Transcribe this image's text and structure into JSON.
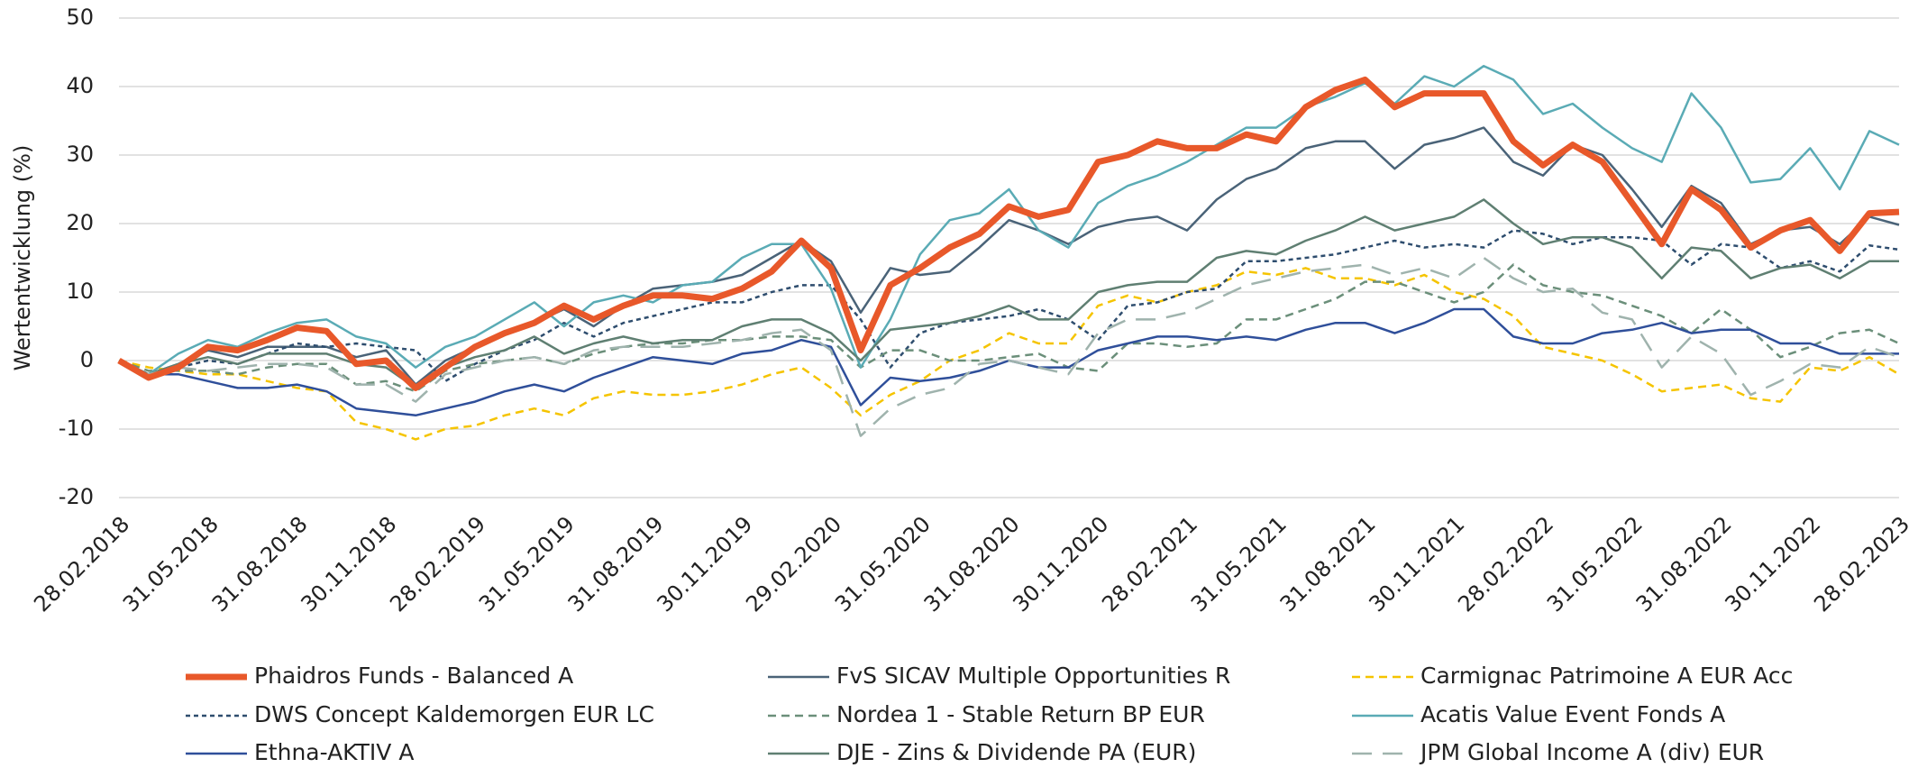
{
  "chart_data": {
    "type": "line",
    "y_label": "Wertentwicklung (%)",
    "ylim": [
      -20,
      50
    ],
    "yticks": [
      -20,
      -10,
      0,
      10,
      20,
      30,
      40,
      50
    ],
    "grid": true,
    "legend": "bottom",
    "categories": [
      "28.02.2018",
      null,
      null,
      "31.05.2018",
      null,
      null,
      "31.08.2018",
      null,
      null,
      "30.11.2018",
      null,
      null,
      "28.02.2019",
      null,
      null,
      "31.05.2019",
      null,
      null,
      "31.08.2019",
      null,
      null,
      "30.11.2019",
      null,
      null,
      "29.02.2020",
      null,
      null,
      "31.05.2020",
      null,
      null,
      "31.08.2020",
      null,
      null,
      "30.11.2020",
      null,
      null,
      "28.02.2021",
      null,
      null,
      "31.05.2021",
      null,
      null,
      "31.08.2021",
      null,
      null,
      "30.11.2021",
      null,
      null,
      "28.02.2022",
      null,
      null,
      "31.05.2022",
      null,
      null,
      "31.08.2022",
      null,
      null,
      "30.11.2022",
      null,
      null,
      "28.02.2023"
    ],
    "series": [
      {
        "name": "Phaidros Funds - Balanced A",
        "color": "#e8582a",
        "dash": "solid",
        "emphasis": true,
        "values": [
          0,
          -2.5,
          -1,
          2,
          1.5,
          3,
          4.8,
          4.3,
          -0.5,
          0,
          -4,
          -1,
          2,
          4,
          5.5,
          8,
          6,
          8,
          9.5,
          9.5,
          9,
          10.5,
          13,
          17.5,
          13.5,
          1.5,
          11,
          13.5,
          16.5,
          18.5,
          22.5,
          21,
          22,
          29,
          30,
          32,
          31,
          31,
          33,
          32,
          37,
          39.5,
          41,
          37,
          39,
          39,
          39,
          32,
          28.5,
          31.5,
          29,
          23,
          17,
          25,
          22,
          16.5,
          19,
          20.5,
          16,
          21.5,
          21.7
        ]
      },
      {
        "name": "FvS SICAV Multiple Opportunities R",
        "color": "#4a6378",
        "dash": "solid",
        "values": [
          0,
          -2,
          -0.5,
          1.5,
          0.5,
          2,
          2,
          2,
          0.5,
          1.5,
          -3.5,
          0,
          2,
          4,
          5.5,
          7.5,
          5,
          8,
          10.5,
          11,
          11.5,
          12.5,
          15,
          17.5,
          14.5,
          7,
          13.5,
          12.5,
          13,
          16.5,
          20.5,
          19,
          17,
          19.5,
          20.5,
          21,
          19,
          23.5,
          26.5,
          28,
          31,
          32,
          32,
          28,
          31.5,
          32.5,
          34,
          29,
          27,
          31.5,
          30,
          25,
          19.5,
          25.5,
          23,
          17,
          19,
          19.5,
          17,
          21,
          19.8
        ]
      },
      {
        "name": "Carmignac Patrimoine A EUR Acc",
        "color": "#f5c400",
        "dash": "dashed",
        "values": [
          0,
          -1,
          -1.5,
          -2,
          -2,
          -3,
          -4,
          -4.5,
          -9,
          -10,
          -11.5,
          -10,
          -9.5,
          -8,
          -7,
          -8,
          -5.5,
          -4.5,
          -5,
          -5,
          -4.5,
          -3.5,
          -2,
          -1,
          -4,
          -8,
          -5,
          -3,
          0,
          1.5,
          4,
          2.5,
          2.5,
          8,
          9.5,
          8.5,
          10,
          11,
          13,
          12.5,
          13.5,
          12,
          12,
          11,
          12.5,
          10,
          9,
          6.5,
          2,
          1,
          0,
          -2,
          -4.5,
          -4,
          -3.5,
          -5.5,
          -6,
          -1,
          -1.5,
          0.5,
          -2
        ]
      },
      {
        "name": "DWS Concept Kaldemorgen EUR LC",
        "color": "#2e4d6e",
        "dash": "dotted",
        "values": [
          0,
          -2,
          -1,
          0,
          -0.5,
          1,
          2.5,
          2,
          2.5,
          2,
          1.5,
          -3,
          -0.5,
          1.5,
          3,
          5.5,
          3.5,
          5.5,
          6.5,
          7.5,
          8.5,
          8.5,
          10,
          11,
          11,
          6,
          -1,
          4,
          5.5,
          6,
          6.5,
          7.5,
          6,
          3,
          8,
          8.5,
          10,
          10.5,
          14.5,
          14.5,
          15,
          15.5,
          16.5,
          17.5,
          16.5,
          17,
          16.5,
          19,
          18.5,
          17,
          18,
          18,
          17.5,
          14,
          17,
          16.5,
          13.5,
          14.5,
          13,
          16.8,
          16.2
        ]
      },
      {
        "name": "Nordea 1 - Stable Return BP EUR",
        "color": "#6b8f7a",
        "dash": "dashed",
        "values": [
          0,
          -1.5,
          -1.5,
          -1.5,
          -2,
          -1,
          -0.5,
          -0.5,
          -3.5,
          -3,
          -4.5,
          -1.5,
          -0.5,
          0,
          0.5,
          -0.5,
          1,
          2,
          2.5,
          2.5,
          3,
          3,
          3.5,
          3.5,
          3,
          -1,
          1.5,
          1.5,
          0,
          0,
          0.5,
          1,
          -1,
          -1.5,
          2.5,
          2.5,
          2,
          2.5,
          6,
          6,
          7.5,
          9,
          11.5,
          11.5,
          10,
          8.5,
          10,
          14,
          11,
          10,
          9.5,
          8,
          6.5,
          4,
          7.5,
          4.5,
          0.5,
          2,
          4,
          4.5,
          2.5
        ]
      },
      {
        "name": "Acatis Value Event Fonds A",
        "color": "#5aabb5",
        "dash": "solid",
        "values": [
          0,
          -2,
          1,
          3,
          2,
          4,
          5.5,
          6,
          3.5,
          2.5,
          -1,
          2,
          3.5,
          6,
          8.5,
          5,
          8.5,
          9.5,
          8.5,
          11,
          11.5,
          15,
          17,
          17,
          10.5,
          -1,
          6,
          15.5,
          20.5,
          21.5,
          25,
          19,
          16.5,
          23,
          25.5,
          27,
          29,
          31.5,
          34,
          34,
          37,
          38.5,
          40.5,
          37.5,
          41.5,
          40,
          43,
          41,
          36,
          37.5,
          34,
          31,
          29,
          39,
          34,
          26,
          26.5,
          31,
          25,
          33.5,
          31.5
        ]
      },
      {
        "name": "Ethna-AKTIV A",
        "color": "#2f4f9a",
        "dash": "solid",
        "values": [
          0,
          -2,
          -2,
          -3,
          -4,
          -4,
          -3.5,
          -4.5,
          -7,
          -7.5,
          -8,
          -7,
          -6,
          -4.5,
          -3.5,
          -4.5,
          -2.5,
          -1,
          0.5,
          0,
          -0.5,
          1,
          1.5,
          3,
          2,
          -6.5,
          -2.5,
          -3,
          -2.5,
          -1.5,
          0,
          -1,
          -1,
          1.5,
          2.5,
          3.5,
          3.5,
          3,
          3.5,
          3,
          4.5,
          5.5,
          5.5,
          4,
          5.5,
          7.5,
          7.5,
          3.5,
          2.5,
          2.5,
          4,
          4.5,
          5.5,
          4,
          4.5,
          4.5,
          2.5,
          2.5,
          1,
          1,
          1
        ]
      },
      {
        "name": "DJE - Zins & Dividende PA (EUR)",
        "color": "#5f7f72",
        "dash": "solid",
        "values": [
          0,
          -2,
          -0.5,
          0.5,
          -0.5,
          1,
          1,
          1,
          -0.5,
          -1,
          -4,
          -1,
          0.5,
          1.5,
          3.5,
          1,
          2.5,
          3.5,
          2.5,
          3,
          3,
          5,
          6,
          6,
          4,
          0,
          4.5,
          5,
          5.5,
          6.5,
          8,
          6,
          6,
          10,
          11,
          11.5,
          11.5,
          15,
          16,
          15.5,
          17.5,
          19,
          21,
          19,
          20,
          21,
          23.5,
          20,
          17,
          18,
          18,
          16.5,
          12,
          16.5,
          16,
          12,
          13.5,
          14,
          12,
          14.5,
          14.5
        ]
      },
      {
        "name": "JPM Global Income A (div) EUR",
        "color": "#9fb3ad",
        "dash": "long-dash",
        "values": [
          0,
          -2,
          -1,
          -1.5,
          -1,
          -0.5,
          -0.5,
          -1,
          -3.5,
          -3.5,
          -6,
          -2,
          -1,
          0,
          0.5,
          -0.5,
          1.5,
          2,
          2,
          2,
          2.5,
          3,
          4,
          4.5,
          1.5,
          -11,
          -7,
          -5,
          -4,
          -0.5,
          0,
          -1,
          -2,
          4,
          6,
          6,
          7,
          9,
          11,
          12,
          13,
          13.5,
          14,
          12.5,
          13.5,
          12,
          15,
          12,
          10,
          10.5,
          7,
          6,
          -1,
          3.5,
          1,
          -5,
          -3,
          -0.5,
          -1,
          2,
          0.5
        ]
      }
    ]
  }
}
